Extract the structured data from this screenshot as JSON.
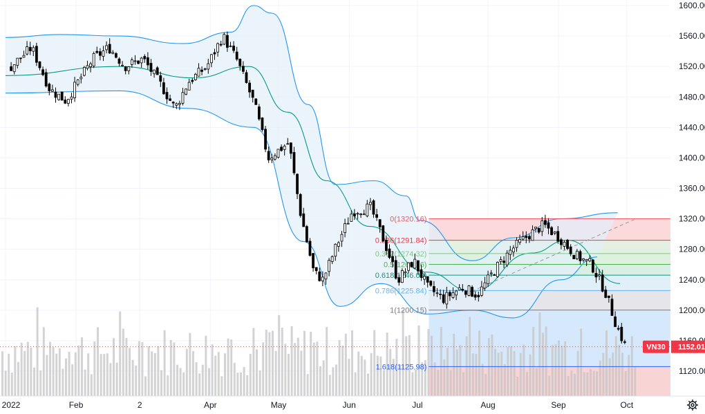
{
  "symbol": "VN30",
  "last_price_label": "1152.01",
  "colors": {
    "price_tag": "#f23645",
    "bollinger": "#2196f3",
    "basis": "#089981",
    "band_fill": "#e3effa",
    "candle": "#000000",
    "volume": "#c4c4c6",
    "fib_1618_fill": "#f8cccc",
    "fib_ext_fill": "#cfe5fb",
    "grid": "#f0f3fa"
  },
  "icons": {
    "settings": "gear-icon"
  },
  "chart_data": {
    "type": "candlestick",
    "title": "",
    "ylim": [
      1100,
      1610
    ],
    "y_ticks": [
      "1600.00",
      "1560.00",
      "1520.00",
      "1480.00",
      "1440.00",
      "1400.00",
      "1360.00",
      "1320.00",
      "1280.00",
      "1240.00",
      "1200.00",
      "1160.00",
      "1120.00"
    ],
    "x_ticks": [
      "2022",
      "Feb",
      "2",
      "Apr",
      "May",
      "Jun",
      "Jul",
      "Aug",
      "Sep",
      "Oct"
    ],
    "x_range": [
      "2022-01-01",
      "2022-10-05"
    ],
    "last_close": 1152.01,
    "price_path": [
      [
        "2022-01-03",
        1520
      ],
      [
        "2022-01-12",
        1545
      ],
      [
        "2022-01-20",
        1490
      ],
      [
        "2022-01-27",
        1475
      ],
      [
        "2022-02-08",
        1530
      ],
      [
        "2022-02-15",
        1545
      ],
      [
        "2022-02-22",
        1520
      ],
      [
        "2022-03-02",
        1530
      ],
      [
        "2022-03-10",
        1495
      ],
      [
        "2022-03-16",
        1465
      ],
      [
        "2022-03-22",
        1500
      ],
      [
        "2022-03-30",
        1520
      ],
      [
        "2022-04-06",
        1560
      ],
      [
        "2022-04-12",
        1530
      ],
      [
        "2022-04-20",
        1470
      ],
      [
        "2022-04-26",
        1400
      ],
      [
        "2022-05-05",
        1420
      ],
      [
        "2022-05-10",
        1330
      ],
      [
        "2022-05-16",
        1250
      ],
      [
        "2022-05-20",
        1240
      ],
      [
        "2022-05-26",
        1285
      ],
      [
        "2022-06-02",
        1330
      ],
      [
        "2022-06-10",
        1335
      ],
      [
        "2022-06-16",
        1290
      ],
      [
        "2022-06-22",
        1240
      ],
      [
        "2022-06-29",
        1265
      ],
      [
        "2022-07-05",
        1230
      ],
      [
        "2022-07-12",
        1215
      ],
      [
        "2022-07-20",
        1230
      ],
      [
        "2022-07-27",
        1220
      ],
      [
        "2022-08-04",
        1255
      ],
      [
        "2022-08-11",
        1280
      ],
      [
        "2022-08-19",
        1300
      ],
      [
        "2022-08-25",
        1312
      ],
      [
        "2022-09-01",
        1295
      ],
      [
        "2022-09-08",
        1272
      ],
      [
        "2022-09-15",
        1260
      ],
      [
        "2022-09-21",
        1225
      ],
      [
        "2022-09-26",
        1180
      ],
      [
        "2022-09-30",
        1152
      ]
    ],
    "bollinger": {
      "upper": [
        [
          "2022-01-01",
          1558
        ],
        [
          "2022-01-25",
          1562
        ],
        [
          "2022-02-20",
          1560
        ],
        [
          "2022-03-20",
          1550
        ],
        [
          "2022-04-10",
          1565
        ],
        [
          "2022-04-20",
          1600
        ],
        [
          "2022-04-28",
          1590
        ],
        [
          "2022-05-14",
          1470
        ],
        [
          "2022-05-26",
          1365
        ],
        [
          "2022-06-12",
          1370
        ],
        [
          "2022-06-26",
          1350
        ],
        [
          "2022-07-02",
          1318
        ],
        [
          "2022-07-25",
          1265
        ],
        [
          "2022-08-12",
          1295
        ],
        [
          "2022-09-02",
          1320
        ],
        [
          "2022-09-27",
          1328
        ]
      ],
      "basis": [
        [
          "2022-01-01",
          1508
        ],
        [
          "2022-02-20",
          1520
        ],
        [
          "2022-03-25",
          1505
        ],
        [
          "2022-04-18",
          1520
        ],
        [
          "2022-05-05",
          1460
        ],
        [
          "2022-05-22",
          1370
        ],
        [
          "2022-06-10",
          1310
        ],
        [
          "2022-07-05",
          1250
        ],
        [
          "2022-07-25",
          1225
        ],
        [
          "2022-08-20",
          1275
        ],
        [
          "2022-09-05",
          1292
        ],
        [
          "2022-09-28",
          1235
        ]
      ],
      "lower": [
        [
          "2022-01-01",
          1485
        ],
        [
          "2022-02-20",
          1488
        ],
        [
          "2022-03-22",
          1465
        ],
        [
          "2022-04-20",
          1440
        ],
        [
          "2022-05-12",
          1290
        ],
        [
          "2022-05-28",
          1205
        ],
        [
          "2022-06-15",
          1235
        ],
        [
          "2022-07-05",
          1195
        ],
        [
          "2022-07-25",
          1200
        ],
        [
          "2022-08-12",
          1190
        ],
        [
          "2022-09-02",
          1240
        ],
        [
          "2022-09-18",
          1270
        ]
      ]
    },
    "fibonacci": {
      "start_date": "2022-07-06",
      "end_date": "2022-10-05",
      "levels": [
        {
          "label": "0(1320.16)",
          "ratio": 0,
          "price": 1320.16,
          "color": "#f7525f",
          "fill": "#fbd3d6"
        },
        {
          "label": "0.236(1291.84)",
          "ratio": 0.236,
          "price": 1291.84,
          "color": "#f23645",
          "fill": "#dfeedd"
        },
        {
          "label": "0.382(1274.32)",
          "ratio": 0.382,
          "price": 1274.32,
          "color": "#81c784",
          "fill": "#d8efd8"
        },
        {
          "label": "0.5(1260.16)",
          "ratio": 0.5,
          "price": 1260.16,
          "color": "#4caf50",
          "fill": "#d3ecdf"
        },
        {
          "label": "0.618(1246.00)",
          "ratio": 0.618,
          "price": 1246.0,
          "color": "#089981",
          "fill": "#dbecf7"
        },
        {
          "label": "0.786(1225.84)",
          "ratio": 0.786,
          "price": 1225.84,
          "color": "#64b5f6",
          "fill": "#e2e2e6"
        },
        {
          "label": "1(1200.15)",
          "ratio": 1,
          "price": 1200.15,
          "color": "#787b86",
          "fill": "#cfe5fb"
        },
        {
          "label": "1.618(1125.98)",
          "ratio": 1.618,
          "price": 1125.98,
          "color": "#2962ff",
          "fill": "#f8cccc"
        }
      ]
    },
    "trend_line": {
      "from": [
        "2022-07-25",
        1225
      ],
      "to": [
        "2022-10-05",
        1320
      ]
    }
  }
}
